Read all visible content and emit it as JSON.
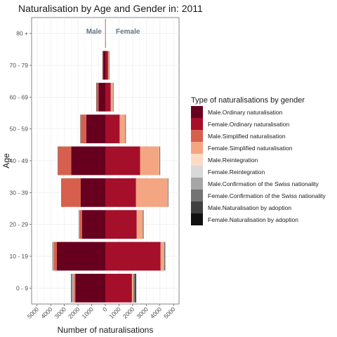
{
  "chart_data": {
    "type": "bar",
    "orientation": "horizontal-population-pyramid",
    "title": "Naturalisation by Age and Gender in: 2011",
    "xlabel": "Number of naturalisations",
    "ylabel": "Age",
    "categories": [
      "0 - 9",
      "10 - 19",
      "20 - 29",
      "30 - 39",
      "40 - 49",
      "50 - 59",
      "60 - 69",
      "70 - 79",
      "80 +"
    ],
    "x_ticks": [
      -5000,
      -4000,
      -3000,
      -2000,
      -1000,
      0,
      1000,
      2000,
      3000,
      4000,
      5000
    ],
    "x_tick_labels": [
      "5000",
      "4000",
      "3000",
      "2000",
      "1000",
      "0",
      "1000",
      "2000",
      "3000",
      "4000",
      "5000"
    ],
    "xlim": [
      -5400,
      5400
    ],
    "annotations": {
      "male": "Male",
      "female": "Female"
    },
    "legend": {
      "title": "Type of naturalisations by gender",
      "position": "right"
    },
    "grid": true,
    "series": [
      {
        "name": "Male.Ordinary naturalisation",
        "side": "male",
        "color": "#67001f",
        "values": [
          2200,
          3550,
          1700,
          1800,
          2500,
          1400,
          500,
          150,
          10
        ]
      },
      {
        "name": "Female.Ordinary naturalisation",
        "side": "female",
        "color": "#a50f2a",
        "values": [
          1950,
          4050,
          2300,
          2250,
          2550,
          1050,
          400,
          200,
          10
        ]
      },
      {
        "name": "Male.Simplified naturalisation",
        "side": "male",
        "color": "#d6604d",
        "values": [
          100,
          250,
          200,
          1400,
          950,
          400,
          150,
          50,
          5
        ]
      },
      {
        "name": "Female.Simplified naturalisation",
        "side": "female",
        "color": "#f4a582",
        "values": [
          100,
          250,
          450,
          2300,
          1400,
          400,
          150,
          50,
          5
        ]
      },
      {
        "name": "Male.Reintegration",
        "side": "male",
        "color": "#fddbc7",
        "values": [
          10,
          10,
          10,
          20,
          30,
          20,
          10,
          5,
          2
        ]
      },
      {
        "name": "Female.Reintegration",
        "side": "female",
        "color": "#d9d9d9",
        "values": [
          10,
          10,
          10,
          20,
          30,
          20,
          10,
          5,
          2
        ]
      },
      {
        "name": "Male.Confirmation of the Swiss nationality",
        "side": "male",
        "color": "#a6a6a6",
        "values": [
          150,
          50,
          10,
          10,
          10,
          5,
          5,
          2,
          1
        ]
      },
      {
        "name": "Female.Confirmation of the Swiss nationality",
        "side": "female",
        "color": "#737373",
        "values": [
          150,
          50,
          10,
          10,
          10,
          5,
          5,
          2,
          1
        ]
      },
      {
        "name": "Male.Naturalisation by adoption",
        "side": "male",
        "color": "#404040",
        "values": [
          50,
          10,
          5,
          5,
          5,
          2,
          1,
          1,
          0
        ]
      },
      {
        "name": "Female.Naturalisation by adoption",
        "side": "female",
        "color": "#111111",
        "values": [
          50,
          10,
          5,
          5,
          5,
          2,
          1,
          1,
          0
        ]
      }
    ]
  }
}
